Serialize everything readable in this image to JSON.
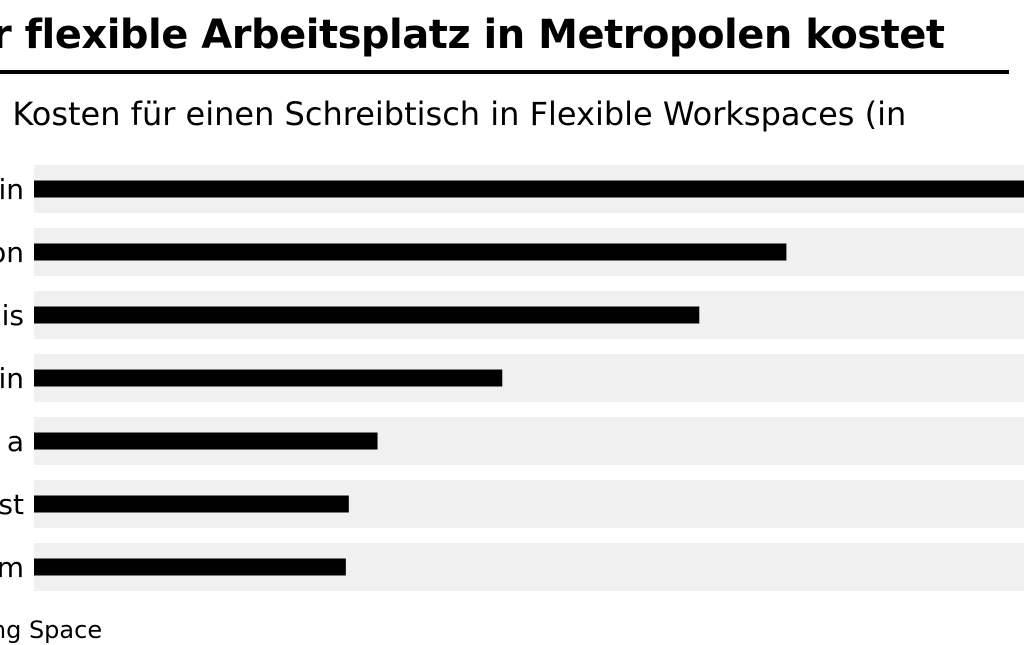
{
  "title": "r flexible Arbeitsplatz in Metropolen kostet",
  "subtitle": ". Kosten für einen Schreibtisch in Flexible Workspaces (in",
  "source": "xing Space",
  "colors": {
    "bar": "#000000",
    "band": "#f0f0f0",
    "rule": "#000000"
  },
  "chart_data": {
    "type": "bar",
    "orientation": "horizontal",
    "categories": [
      "in",
      "on",
      "is",
      "in",
      "a",
      "st",
      "m"
    ],
    "values": [
      100,
      76,
      67.2,
      47.3,
      34.7,
      31.8,
      31.5
    ],
    "xlim": [
      0,
      100
    ],
    "grid": false,
    "legend": "none"
  }
}
